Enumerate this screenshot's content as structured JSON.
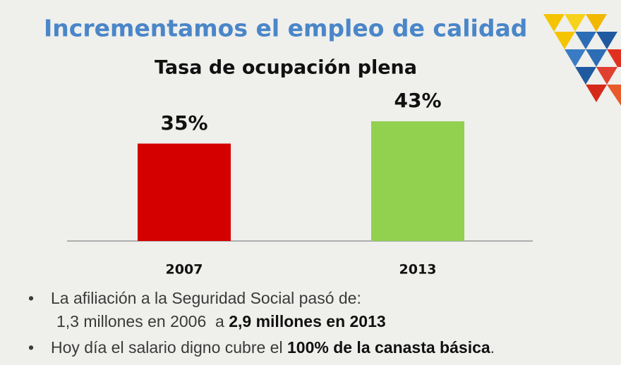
{
  "slide_title": "Incrementamos el empleo de calidad",
  "chart_data": {
    "type": "bar",
    "title": "Tasa de ocupación plena",
    "categories": [
      "2007",
      "2013"
    ],
    "values": [
      35,
      43
    ],
    "value_labels": [
      "35%",
      "43%"
    ],
    "colors": [
      "#d40000",
      "#92d050"
    ]
  },
  "bullets": [
    {
      "text": "La afiliación a la Seguridad Social pasó de:",
      "text2": "1,3 millones en 2006  a ",
      "bold": "2,9 millones en 2013"
    },
    {
      "text": "Hoy día el salario digno cubre el ",
      "bold": "100% de la canasta básica",
      "end": "."
    }
  ]
}
